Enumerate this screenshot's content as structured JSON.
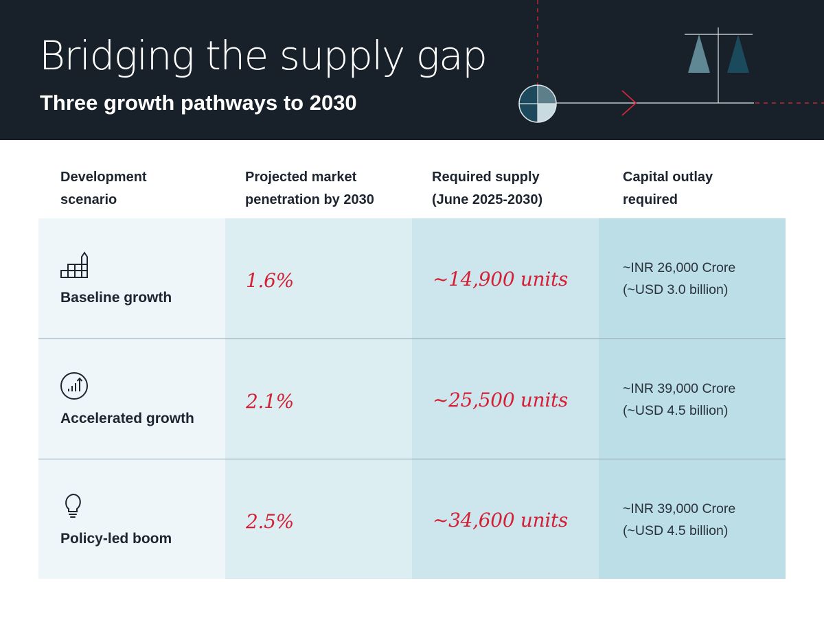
{
  "header": {
    "title": "Bridging the supply gap",
    "subtitle": "Three growth pathways to 2030"
  },
  "table": {
    "columns": [
      "Development\nscenario",
      "Projected market\npenetration by 2030",
      "Required supply\n(June 2025-2030)",
      "Capital outlay\nrequired"
    ],
    "rows": [
      {
        "icon": "stepped-blocks-icon",
        "scenario": "Baseline growth",
        "penetration": "1.6%",
        "supply": "~14,900 units",
        "capital_line1": "~INR 26,000 Crore",
        "capital_line2": "(~USD 3.0 billion)"
      },
      {
        "icon": "rising-bar-chart-icon",
        "scenario": "Accelerated growth",
        "penetration": "2.1%",
        "supply": "~25,500 units",
        "capital_line1": "~INR 39,000 Crore",
        "capital_line2": "(~USD 4.5 billion)"
      },
      {
        "icon": "lightbulb-icon",
        "scenario": "Policy-led boom",
        "penetration": "2.5%",
        "supply": "~34,600 units",
        "capital_line1": "~INR 39,000 Crore",
        "capital_line2": "(~USD 4.5 billion)"
      }
    ]
  },
  "colors": {
    "header_bg": "#18202a",
    "accent_red": "#d51f35",
    "col1_bg": "#eef6f9",
    "col2_bg": "#ddeef3",
    "col3_bg": "#cde5ec",
    "col4_bg": "#bcdee6"
  }
}
